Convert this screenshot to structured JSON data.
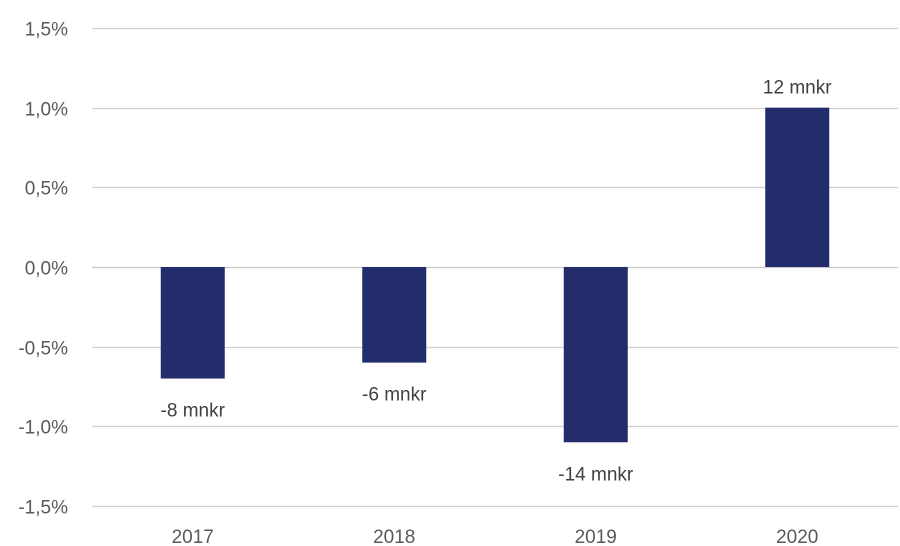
{
  "chart_data": {
    "type": "bar",
    "title": "",
    "xlabel": "",
    "ylabel": "",
    "categories": [
      "2017",
      "2018",
      "2019",
      "2020"
    ],
    "values": [
      -0.7,
      -0.6,
      -1.1,
      1.0
    ],
    "value_unit": "%",
    "data_labels": [
      "-8 mnkr",
      "-6 mnkr",
      "-14 mnkr",
      "12 mnkr"
    ],
    "ylim": [
      -1.5,
      1.5
    ],
    "yticks": [
      1.5,
      1.0,
      0.5,
      0.0,
      -0.5,
      -1.0,
      -1.5
    ],
    "ytick_labels": [
      "1,5%",
      "1,0%",
      "0,5%",
      "0,0%",
      "-0,5%",
      "-1,0%",
      "-1,5%"
    ],
    "grid": true,
    "legend": "none",
    "colors": {
      "bar": "#232d6b",
      "grid": "#d0d0d0",
      "zero_line": "#c8c8c8",
      "tick_text": "#595959",
      "label_text": "#404040"
    }
  }
}
